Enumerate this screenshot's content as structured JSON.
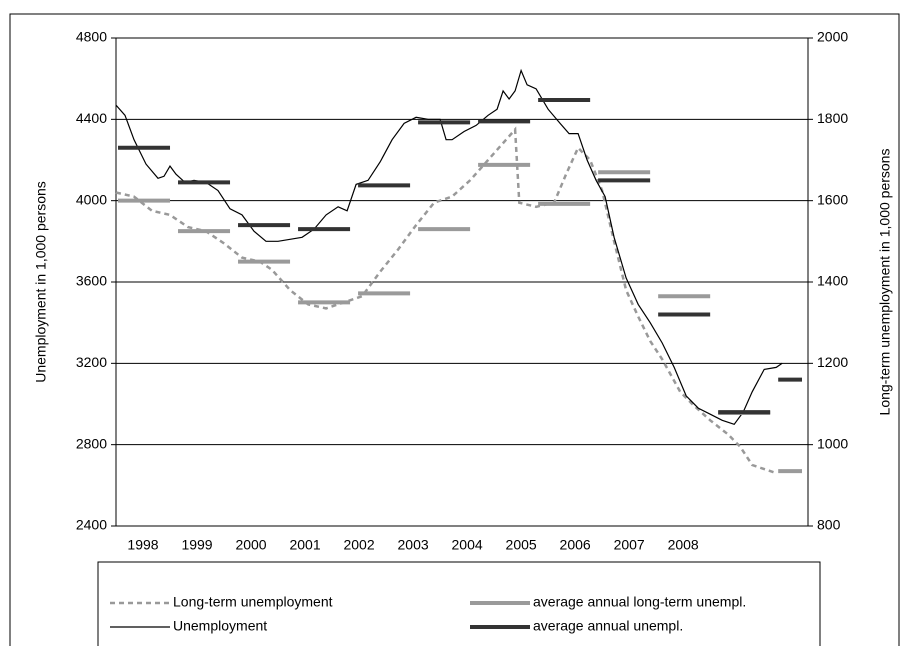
{
  "chart_data": {
    "type": "line",
    "y_label": "Unemployment in 1,000 persons",
    "y2_label": "Long-term unemployment in 1,000 persons",
    "xlim": [
      1998,
      2009.53
    ],
    "xticks": [
      {
        "value": 1998.45,
        "label": "1998"
      },
      {
        "value": 1999.35,
        "label": "1999"
      },
      {
        "value": 2000.25,
        "label": "2000"
      },
      {
        "value": 2001.15,
        "label": "2001"
      },
      {
        "value": 2002.05,
        "label": "2002"
      },
      {
        "value": 2002.95,
        "label": "2003"
      },
      {
        "value": 2003.85,
        "label": "2004"
      },
      {
        "value": 2004.75,
        "label": "2005"
      },
      {
        "value": 2005.65,
        "label": "2006"
      },
      {
        "value": 2006.55,
        "label": "2007"
      },
      {
        "value": 2007.45,
        "label": "2008"
      }
    ],
    "ylim": [
      2400,
      4800
    ],
    "yticks": [
      2400,
      2800,
      3200,
      3600,
      4000,
      4400,
      4800
    ],
    "y2lim": [
      800,
      2000
    ],
    "y2ticks": [
      800,
      1000,
      1200,
      1400,
      1600,
      1800,
      2000
    ],
    "grid": true,
    "series": [
      {
        "name": "Long-term unemployment",
        "color": "#999999",
        "axis": "y2",
        "style": "dashed",
        "x": [
          1998.0,
          1998.3,
          1998.6,
          1998.9,
          1999.2,
          1999.5,
          1999.8,
          2000.1,
          2000.4,
          2000.6,
          2000.9,
          2001.2,
          2001.5,
          2001.8,
          2002.1,
          2002.4,
          2002.7,
          2003.0,
          2003.3,
          2003.6,
          2003.9,
          2004.2,
          2004.5,
          2004.65,
          2004.72,
          2005.0,
          2005.3,
          2005.5,
          2005.7,
          2005.9,
          2006.1,
          2006.3,
          2006.5,
          2006.7,
          2006.9,
          2007.1,
          2007.4,
          2007.6,
          2007.9,
          2008.2,
          2008.4,
          2008.6,
          2008.8,
          2009.0
        ],
        "values": [
          1620,
          1610,
          1575,
          1565,
          1535,
          1525,
          1495,
          1460,
          1450,
          1430,
          1380,
          1345,
          1335,
          1350,
          1365,
          1425,
          1480,
          1540,
          1595,
          1610,
          1650,
          1700,
          1750,
          1775,
          1595,
          1585,
          1595,
          1665,
          1730,
          1700,
          1625,
          1500,
          1380,
          1315,
          1255,
          1210,
          1130,
          1100,
          1060,
          1025,
          995,
          950,
          940,
          930
        ]
      },
      {
        "name": "average annual long-term unempl.",
        "color": "#9a9a9a",
        "axis": "y2",
        "style": "step",
        "x": [
          1998,
          1999,
          2000,
          2001,
          2002,
          2003,
          2004,
          2005,
          2006,
          2007,
          2008,
          2009
        ],
        "values": [
          1600,
          1525,
          1450,
          1350,
          1372,
          1530,
          1688,
          1592,
          1670,
          1365,
          1078,
          935
        ]
      },
      {
        "name": "Unemployment",
        "color": "#000000",
        "axis": "y",
        "style": "solid",
        "x": [
          1998.0,
          1998.15,
          1998.3,
          1998.5,
          1998.7,
          1998.8,
          1998.9,
          1999.0,
          1999.15,
          1999.3,
          1999.5,
          1999.7,
          1999.9,
          2000.1,
          2000.3,
          2000.5,
          2000.7,
          2000.9,
          2001.1,
          2001.3,
          2001.5,
          2001.7,
          2001.85,
          2002.0,
          2002.2,
          2002.4,
          2002.6,
          2002.8,
          2003.0,
          2003.2,
          2003.4,
          2003.5,
          2003.6,
          2003.8,
          2004.0,
          2004.2,
          2004.35,
          2004.45,
          2004.55,
          2004.65,
          2004.75,
          2004.85,
          2005.0,
          2005.2,
          2005.4,
          2005.55,
          2005.7,
          2005.85,
          2006.0,
          2006.15,
          2006.3,
          2006.5,
          2006.7,
          2006.9,
          2007.1,
          2007.3,
          2007.5,
          2007.7,
          2007.9,
          2008.1,
          2008.3,
          2008.45,
          2008.6,
          2008.8,
          2009.0,
          2009.1
        ],
        "values": [
          4470,
          4420,
          4300,
          4180,
          4110,
          4120,
          4170,
          4130,
          4090,
          4100,
          4090,
          4050,
          3960,
          3930,
          3850,
          3800,
          3800,
          3810,
          3820,
          3860,
          3930,
          3970,
          3950,
          4080,
          4100,
          4190,
          4300,
          4380,
          4410,
          4400,
          4400,
          4300,
          4300,
          4340,
          4370,
          4420,
          4450,
          4540,
          4500,
          4540,
          4640,
          4570,
          4550,
          4450,
          4380,
          4330,
          4330,
          4200,
          4100,
          4020,
          3820,
          3620,
          3490,
          3400,
          3300,
          3180,
          3040,
          2980,
          2950,
          2920,
          2900,
          2960,
          3060,
          3170,
          3180,
          3200
        ]
      },
      {
        "name": "average annual unempl.",
        "color": "#333333",
        "axis": "y",
        "style": "step",
        "x": [
          1998,
          1999,
          2000,
          2001,
          2002,
          2003,
          2004,
          2005,
          2006,
          2007,
          2008,
          2009
        ],
        "values": [
          4260,
          4090,
          3880,
          3860,
          4075,
          4385,
          4390,
          4495,
          4100,
          3440,
          2960,
          3120
        ]
      }
    ]
  }
}
